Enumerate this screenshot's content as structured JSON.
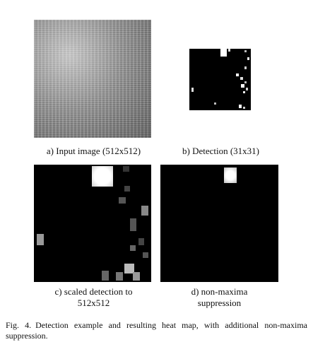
{
  "figure": {
    "label": "Fig. 4.",
    "caption": "Detection example and resulting heat map, with additional non-maxima suppression."
  },
  "panels": [
    {
      "id": "a",
      "caption": "a) Input image (512x512)"
    },
    {
      "id": "b",
      "caption": "b) Detection (31x31)"
    },
    {
      "id": "c",
      "caption_line1": "c) scaled detection to",
      "caption_line2": "512x512"
    },
    {
      "id": "d",
      "caption_line1": "d) non-maxima",
      "caption_line2": "suppression"
    }
  ]
}
